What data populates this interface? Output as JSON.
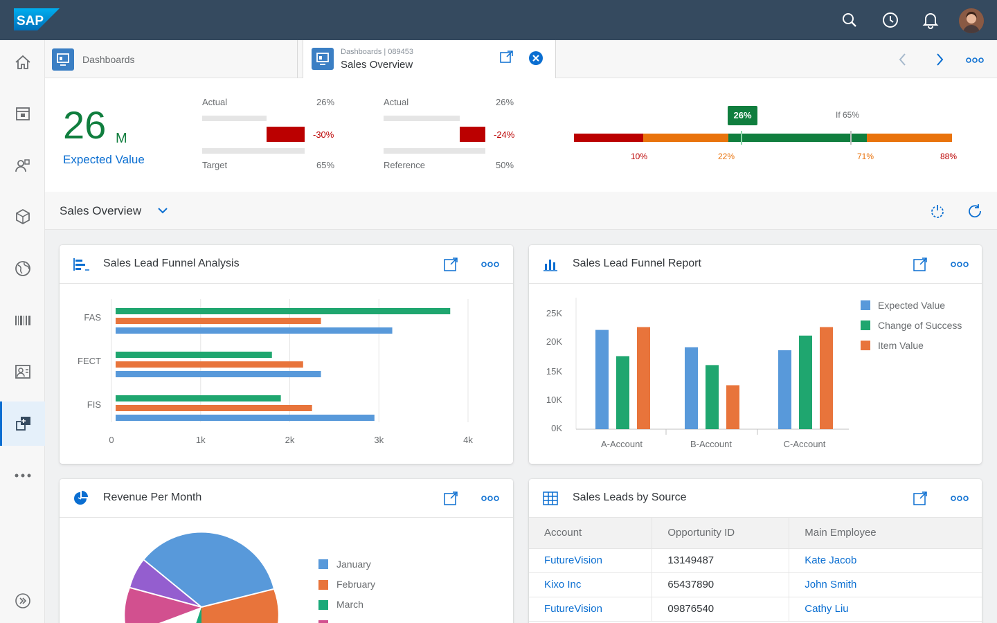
{
  "shell": {
    "logo_text": "SAP",
    "icons": [
      "search-icon",
      "history-icon",
      "notifications-icon"
    ]
  },
  "nav": {
    "items": [
      "home-icon",
      "calendar-icon",
      "customers-icon",
      "product-icon",
      "globe-icon",
      "barcode-icon",
      "contacts-icon",
      "sales-dashboard-icon",
      "more-icon"
    ],
    "active_index": 7,
    "collapse_icon": "expand-icon"
  },
  "tabs": {
    "tab1_label": "Dashboards",
    "tab2_subtitle": "Dashboards | 089453",
    "tab2_title": "Sales Overview"
  },
  "kpi": {
    "value": "26",
    "unit": "M",
    "label": "Expected Value",
    "block1": {
      "actual_label": "Actual",
      "actual_value": "26%",
      "delta": "-30%",
      "target_label": "Target",
      "target_value": "65%"
    },
    "block2": {
      "actual_label": "Actual",
      "actual_value": "26%",
      "delta": "-24%",
      "reference_label": "Reference",
      "reference_value": "50%"
    },
    "scale": {
      "current": "26%",
      "if_label": "If 65%",
      "ticks": [
        "10%",
        "22%",
        "71%",
        "88%"
      ]
    }
  },
  "page": {
    "title": "Sales Overview"
  },
  "cards": {
    "funnel_analysis": {
      "title": "Sales Lead Funnel Analysis"
    },
    "funnel_report": {
      "title": "Sales Lead Funnel Report"
    },
    "revenue": {
      "title": "Revenue Per Month"
    },
    "leads": {
      "title": "Sales Leads by Source",
      "columns": [
        "Account",
        "Opportunity ID",
        "Main Employee"
      ],
      "rows": [
        [
          "FutureVision",
          "13149487",
          "Kate Jacob"
        ],
        [
          "Kixo Inc",
          "65437890",
          "John Smith"
        ],
        [
          "FutureVision",
          "09876540",
          "Cathy Liu"
        ]
      ]
    }
  },
  "colors": {
    "green": "#1fa66f",
    "orange": "#e8743b",
    "blue": "#5899da",
    "red": "#bb0000",
    "shell": "#354a5f"
  },
  "chart_data": [
    {
      "type": "bar",
      "orientation": "horizontal",
      "categories": [
        "FAS",
        "FECT",
        "FIS"
      ],
      "series": [
        {
          "values": [
            3800,
            1800,
            1900
          ]
        },
        {
          "values": [
            2350,
            2150,
            2250
          ]
        },
        {
          "values": [
            3150,
            2350,
            2950
          ]
        }
      ],
      "xlim": [
        0,
        4000
      ],
      "x_ticks": [
        "0",
        "1k",
        "2k",
        "3k",
        "4k"
      ],
      "grid": true
    },
    {
      "type": "bar",
      "categories": [
        "A-Account",
        "B-Account",
        "C-Account"
      ],
      "series": [
        {
          "name": "Expected Value",
          "values": [
            22000,
            19000,
            18500
          ]
        },
        {
          "name": "Change of Success",
          "values": [
            17500,
            16000,
            21000
          ]
        },
        {
          "name": "Item Value",
          "values": [
            22500,
            12500,
            22500
          ]
        }
      ],
      "y_ticks": [
        "0K",
        "10K",
        "15K",
        "20K",
        "25K"
      ],
      "legend": "right"
    },
    {
      "type": "pie",
      "labels": [
        "January",
        "February",
        "March"
      ],
      "note": "partially visible"
    }
  ]
}
